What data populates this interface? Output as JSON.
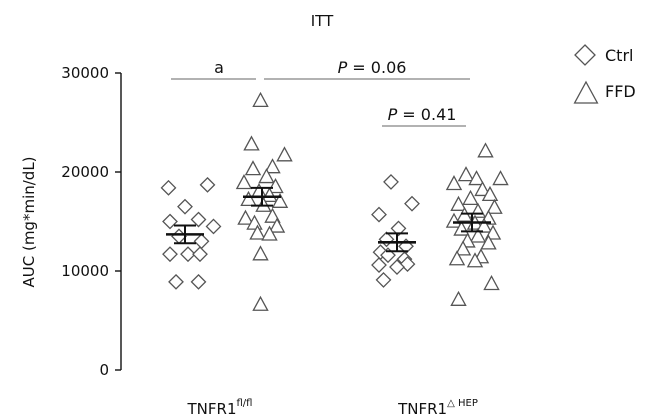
{
  "chart_data": {
    "type": "scatter",
    "title": "ITT",
    "ylabel": "AUC (mg*min/dL)",
    "xlabel": "",
    "ylim": [
      0,
      30000
    ],
    "yticks": [
      0,
      10000,
      20000,
      30000
    ],
    "groups": [
      {
        "label_main": "TNFR1",
        "label_sup": "fl/fl"
      },
      {
        "label_main": "TNFR1",
        "label_sup": "△ HEP"
      }
    ],
    "legend": {
      "placement": "top-right",
      "entries": [
        {
          "name": "Ctrl",
          "marker": "diamond"
        },
        {
          "name": "FFD",
          "marker": "triangle"
        }
      ]
    },
    "annotations": [
      {
        "text": "a",
        "from": "TNFR1 fl/fl Ctrl",
        "to": "TNFR1 fl/fl FFD"
      },
      {
        "text_prefix": "P",
        "text_suffix": " = 0.06",
        "from": "TNFR1 fl/fl FFD",
        "to": "TNFR1 △HEP FFD"
      },
      {
        "text_prefix": "P",
        "text_suffix": " = 0.41",
        "from": "TNFR1 △HEP Ctrl",
        "to": "TNFR1 △HEP FFD"
      }
    ],
    "series": [
      {
        "group": 0,
        "condition": "Ctrl",
        "marker": "diamond",
        "mean": 13700,
        "sem": 900,
        "points": [
          {
            "dx": -0.55,
            "y": 18400
          },
          {
            "dx": 0.75,
            "y": 18700
          },
          {
            "dx": 0.0,
            "y": 16500
          },
          {
            "dx": -0.5,
            "y": 15000
          },
          {
            "dx": 0.45,
            "y": 15200
          },
          {
            "dx": 0.95,
            "y": 14500
          },
          {
            "dx": -0.2,
            "y": 13500
          },
          {
            "dx": 0.55,
            "y": 13000
          },
          {
            "dx": -0.5,
            "y": 11700
          },
          {
            "dx": 0.1,
            "y": 11700
          },
          {
            "dx": 0.5,
            "y": 11700
          },
          {
            "dx": -0.3,
            "y": 8900
          },
          {
            "dx": 0.45,
            "y": 8900
          }
        ]
      },
      {
        "group": 0,
        "condition": "FFD",
        "marker": "triangle",
        "mean": 17500,
        "sem": 900,
        "points": [
          {
            "dx": -0.05,
            "y": 27200
          },
          {
            "dx": -0.35,
            "y": 22800
          },
          {
            "dx": 0.75,
            "y": 21700
          },
          {
            "dx": 0.35,
            "y": 20500
          },
          {
            "dx": -0.3,
            "y": 20300
          },
          {
            "dx": 0.15,
            "y": 19500
          },
          {
            "dx": -0.6,
            "y": 18900
          },
          {
            "dx": 0.45,
            "y": 18500
          },
          {
            "dx": -0.1,
            "y": 18000
          },
          {
            "dx": 0.25,
            "y": 17600
          },
          {
            "dx": -0.45,
            "y": 17200
          },
          {
            "dx": 0.6,
            "y": 17000
          },
          {
            "dx": 0.05,
            "y": 16600
          },
          {
            "dx": -0.55,
            "y": 15300
          },
          {
            "dx": 0.35,
            "y": 15500
          },
          {
            "dx": -0.25,
            "y": 14800
          },
          {
            "dx": 0.5,
            "y": 14500
          },
          {
            "dx": -0.15,
            "y": 13800
          },
          {
            "dx": 0.25,
            "y": 13700
          },
          {
            "dx": -0.05,
            "y": 11700
          },
          {
            "dx": -0.05,
            "y": 6600
          }
        ]
      },
      {
        "group": 1,
        "condition": "Ctrl",
        "marker": "diamond",
        "mean": 12900,
        "sem": 900,
        "points": [
          {
            "dx": -0.2,
            "y": 19000
          },
          {
            "dx": 0.5,
            "y": 16800
          },
          {
            "dx": -0.6,
            "y": 15700
          },
          {
            "dx": 0.05,
            "y": 14300
          },
          {
            "dx": -0.35,
            "y": 13200
          },
          {
            "dx": 0.3,
            "y": 12500
          },
          {
            "dx": -0.55,
            "y": 11900
          },
          {
            "dx": -0.3,
            "y": 11600
          },
          {
            "dx": 0.25,
            "y": 11200
          },
          {
            "dx": -0.6,
            "y": 10600
          },
          {
            "dx": 0.35,
            "y": 10700
          },
          {
            "dx": 0.0,
            "y": 10400
          },
          {
            "dx": -0.45,
            "y": 9100
          }
        ]
      },
      {
        "group": 1,
        "condition": "FFD",
        "marker": "triangle",
        "mean": 14900,
        "sem": 900,
        "points": [
          {
            "dx": 0.45,
            "y": 22100
          },
          {
            "dx": -0.2,
            "y": 19700
          },
          {
            "dx": 0.15,
            "y": 19300
          },
          {
            "dx": 0.95,
            "y": 19300
          },
          {
            "dx": -0.6,
            "y": 18800
          },
          {
            "dx": 0.35,
            "y": 18200
          },
          {
            "dx": 0.6,
            "y": 17700
          },
          {
            "dx": -0.05,
            "y": 17300
          },
          {
            "dx": -0.45,
            "y": 16700
          },
          {
            "dx": 0.75,
            "y": 16400
          },
          {
            "dx": 0.2,
            "y": 16000
          },
          {
            "dx": -0.25,
            "y": 15600
          },
          {
            "dx": 0.55,
            "y": 15300
          },
          {
            "dx": -0.6,
            "y": 15000
          },
          {
            "dx": 0.1,
            "y": 14800
          },
          {
            "dx": 0.4,
            "y": 14500
          },
          {
            "dx": -0.35,
            "y": 14200
          },
          {
            "dx": 0.7,
            "y": 13800
          },
          {
            "dx": 0.2,
            "y": 13500
          },
          {
            "dx": -0.15,
            "y": 13000
          },
          {
            "dx": 0.55,
            "y": 12800
          },
          {
            "dx": -0.3,
            "y": 12200
          },
          {
            "dx": 0.3,
            "y": 11400
          },
          {
            "dx": -0.5,
            "y": 11200
          },
          {
            "dx": 0.1,
            "y": 11000
          },
          {
            "dx": 0.65,
            "y": 8700
          },
          {
            "dx": -0.45,
            "y": 7100
          }
        ]
      }
    ]
  }
}
